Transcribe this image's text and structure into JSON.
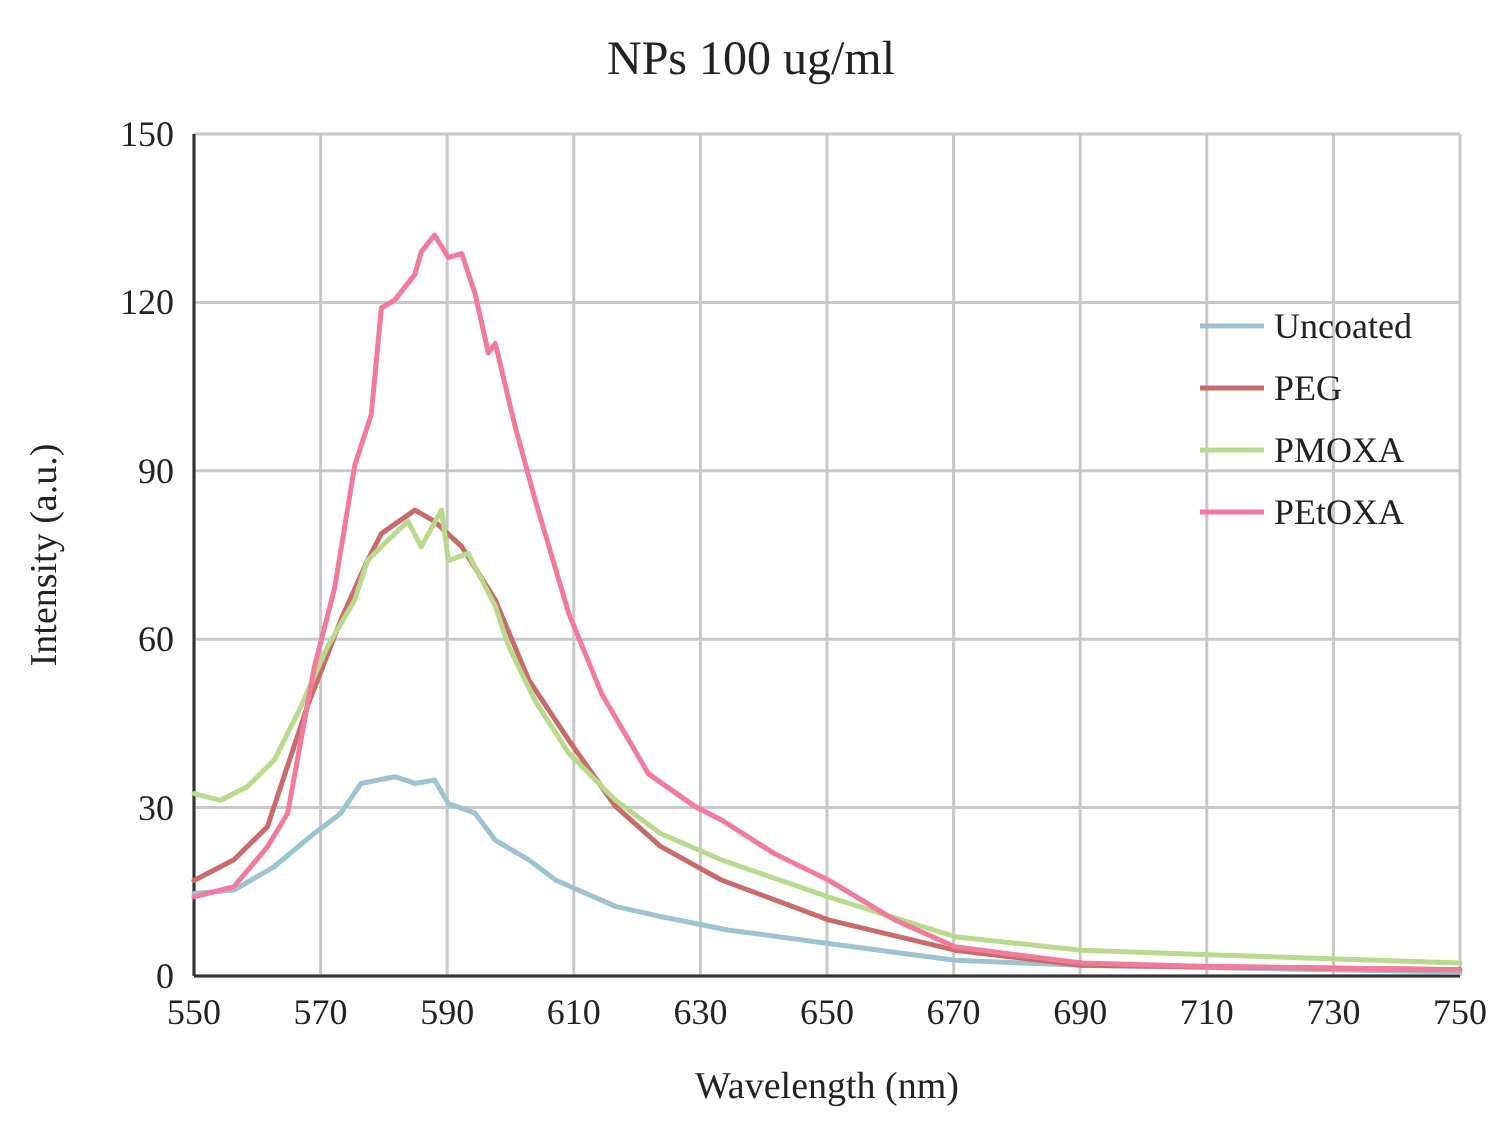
{
  "chart_data": {
    "type": "line",
    "title": "NPs 100 ug/ml",
    "xlabel": "Wavelength (nm)",
    "ylabel": "Intensity (a.u.)",
    "xlim": [
      550,
      750
    ],
    "xticks": [
      550,
      570,
      590,
      610,
      630,
      650,
      670,
      690,
      710,
      730,
      750
    ],
    "ylim": [
      0,
      150
    ],
    "yticks": [
      0,
      30,
      60,
      90,
      120,
      150
    ],
    "grid": true,
    "legend": "right",
    "marker": "none",
    "line_style": "solid",
    "series": [
      {
        "name": "Uncoated",
        "color": "#9dc3d0",
        "x": [
          550,
          556.3,
          562.7,
          569,
          573.2,
          576.4,
          581.7,
          584.9,
          588,
          590.2,
          594.4,
          597.6,
          602.9,
          607.1,
          616.6,
          623.7,
          634.3,
          650.2,
          670.2,
          690.2,
          750
        ],
        "values": [
          14.7,
          15.3,
          19.5,
          25.4,
          29,
          34.3,
          35.5,
          34.3,
          34.9,
          30.7,
          29,
          24.2,
          20.7,
          17.1,
          12.4,
          10.6,
          8.2,
          5.8,
          2.8,
          1.9,
          0.7
        ]
      },
      {
        "name": "PEG",
        "color": "#c96b6b",
        "x": [
          550,
          556.3,
          561.6,
          567.9,
          573.2,
          577.4,
          579.6,
          584.9,
          588,
          592.3,
          597.6,
          602.9,
          609.2,
          616.6,
          623.7,
          633.3,
          650.2,
          670.2,
          690.2,
          750
        ],
        "values": [
          17,
          20.7,
          26.6,
          48,
          63.4,
          74,
          78.8,
          83,
          81,
          76.5,
          67,
          52.7,
          42,
          30.2,
          23.1,
          17.1,
          10,
          4.6,
          1.9,
          1.1
        ]
      },
      {
        "name": "PMOXA",
        "color": "#b9d98c",
        "x": [
          550,
          554.2,
          558.4,
          562.7,
          566.9,
          571.1,
          575.4,
          577.4,
          580.6,
          583.8,
          585.9,
          589.1,
          590.2,
          593.3,
          597.6,
          599.7,
          603.9,
          609.2,
          616.6,
          623.7,
          633.3,
          650.2,
          670.2,
          690.2,
          710.3,
          750
        ],
        "values": [
          32.5,
          31.3,
          33.7,
          38.5,
          48,
          58.7,
          67,
          74,
          77.6,
          81,
          76.5,
          83,
          74,
          75.3,
          65.9,
          58.7,
          49,
          39.7,
          31.3,
          25.4,
          20.7,
          14.1,
          7,
          4.6,
          3.8,
          2.3
        ]
      },
      {
        "name": "PEtOXA",
        "color": "#f27a9b",
        "x": [
          550,
          556.3,
          561.6,
          564.8,
          569,
          572.2,
          575.4,
          578,
          579.6,
          581.7,
          584.9,
          585.9,
          588,
          590.2,
          592.3,
          594.4,
          596.5,
          597.6,
          600.7,
          603.9,
          609.2,
          614.4,
          621.8,
          629,
          633.3,
          641.7,
          650.2,
          660.7,
          670.2,
          690.2,
          710.3,
          750
        ],
        "values": [
          14.1,
          15.9,
          23,
          29,
          55,
          69,
          91,
          100,
          119,
          120.4,
          125,
          129,
          132,
          128,
          128.7,
          121.6,
          111,
          112.7,
          98,
          84.8,
          64.6,
          50.3,
          36,
          30.3,
          27.8,
          21.8,
          17.1,
          10,
          5.2,
          2.3,
          1.7,
          1.1
        ]
      }
    ]
  }
}
